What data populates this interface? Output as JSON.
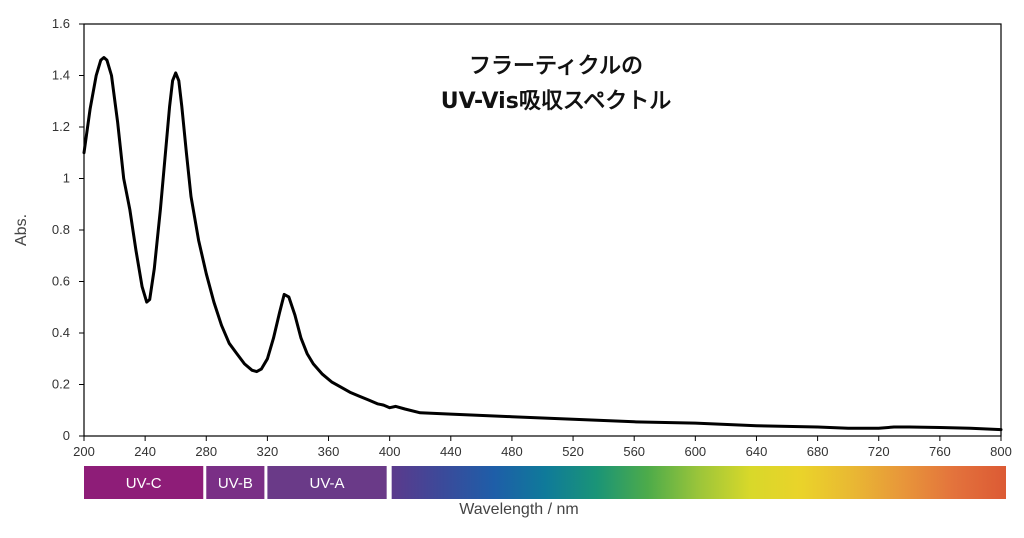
{
  "chart_data": {
    "type": "line",
    "title_lines": [
      "フラーティクルの",
      "UV-Vis吸収スペクトル"
    ],
    "xlabel": "Wavelength / nm",
    "ylabel": "Abs.",
    "xlim": [
      200,
      800
    ],
    "ylim": [
      0,
      1.6
    ],
    "x_ticks": [
      200,
      240,
      280,
      320,
      360,
      400,
      440,
      480,
      520,
      560,
      600,
      640,
      680,
      720,
      760,
      800
    ],
    "y_ticks": [
      0,
      0.2,
      0.4,
      0.6,
      0.8,
      1,
      1.2,
      1.4,
      1.6
    ],
    "y_tick_labels": [
      "0",
      "0.2",
      "0.4",
      "0.6",
      "0.8",
      "1",
      "1.2",
      "1.4",
      "1.6"
    ],
    "grid": false,
    "line_color": "#000000",
    "series": [
      {
        "x": [
          200,
          204,
          208,
          211,
          213,
          215,
          218,
          222,
          226,
          230,
          234,
          238,
          241,
          243,
          246,
          250,
          253,
          256,
          258,
          260,
          262,
          264,
          267,
          270,
          275,
          280,
          285,
          290,
          295,
          300,
          305,
          310,
          313,
          316,
          320,
          324,
          328,
          331,
          334,
          338,
          342,
          346,
          350,
          356,
          362,
          368,
          374,
          380,
          386,
          392,
          396,
          400,
          404,
          410,
          420,
          440,
          480,
          520,
          560,
          600,
          640,
          680,
          700,
          720,
          730,
          740,
          760,
          780,
          800
        ],
        "y": [
          1.1,
          1.27,
          1.4,
          1.46,
          1.47,
          1.46,
          1.4,
          1.22,
          1.0,
          0.88,
          0.72,
          0.58,
          0.52,
          0.53,
          0.65,
          0.88,
          1.08,
          1.28,
          1.38,
          1.41,
          1.38,
          1.28,
          1.1,
          0.93,
          0.76,
          0.63,
          0.52,
          0.43,
          0.36,
          0.32,
          0.28,
          0.255,
          0.25,
          0.26,
          0.3,
          0.38,
          0.48,
          0.55,
          0.54,
          0.47,
          0.38,
          0.32,
          0.28,
          0.24,
          0.21,
          0.19,
          0.17,
          0.155,
          0.14,
          0.125,
          0.12,
          0.11,
          0.115,
          0.105,
          0.09,
          0.085,
          0.075,
          0.065,
          0.055,
          0.05,
          0.04,
          0.035,
          0.03,
          0.03,
          0.035,
          0.035,
          0.033,
          0.03,
          0.025
        ]
      }
    ],
    "bands": [
      {
        "label": "UV-C",
        "from": 200,
        "to": 280,
        "color": "#8e1d78"
      },
      {
        "label": "UV-B",
        "from": 280,
        "to": 320,
        "color": "#7a2f86"
      },
      {
        "label": "UV-A",
        "from": 320,
        "to": 400,
        "color": "#6a3a88"
      }
    ],
    "spectrum_colors": [
      "#5b3a8c",
      "#3b4a9a",
      "#1e5ea8",
      "#0f7a9a",
      "#1a9477",
      "#4dab4a",
      "#9bc53a",
      "#d8d82a",
      "#ead32a",
      "#e9b833",
      "#e8963a",
      "#e3723c",
      "#dc5a34"
    ]
  }
}
